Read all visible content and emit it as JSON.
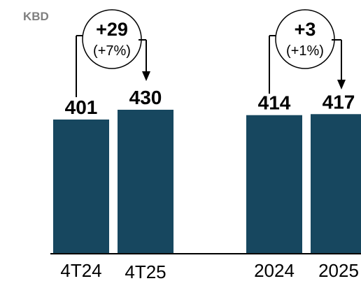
{
  "chart_data": {
    "type": "bar",
    "unit_label": "KBD",
    "categories": [
      "4T24",
      "4T25",
      "2024",
      "2025"
    ],
    "values": [
      401,
      430,
      414,
      417
    ],
    "value_labels": [
      "401",
      "430",
      "414",
      "417"
    ],
    "comparisons": [
      {
        "from": "4T24",
        "to": "4T25",
        "delta": "+29",
        "pct": "(+7%)"
      },
      {
        "from": "2024",
        "to": "2025",
        "delta": "+3",
        "pct": "(+1%)"
      }
    ],
    "colors": {
      "bar": "#17475f",
      "axis": "#000000",
      "unit": "#7f7f7f"
    }
  }
}
